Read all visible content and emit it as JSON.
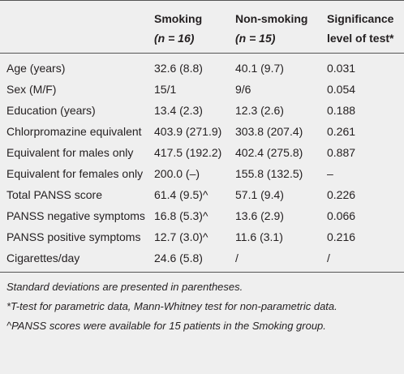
{
  "table": {
    "header": [
      {
        "title": ""
      },
      {
        "title": "Smoking",
        "sub": "(n = 16)"
      },
      {
        "title": "Non-smoking",
        "sub": "(n = 15)"
      },
      {
        "title": "Significance level of test*"
      }
    ],
    "rows": [
      [
        "Age (years)",
        "32.6 (8.8)",
        "40.1 (9.7)",
        "0.031"
      ],
      [
        "Sex (M/F)",
        "15/1",
        "9/6",
        "0.054"
      ],
      [
        "Education (years)",
        "13.4 (2.3)",
        "12.3 (2.6)",
        "0.188"
      ],
      [
        "Chlorpromazine equivalent",
        "403.9 (271.9)",
        "303.8 (207.4)",
        "0.261"
      ],
      [
        "Equivalent for males only",
        "417.5 (192.2)",
        "402.4 (275.8)",
        "0.887"
      ],
      [
        "Equivalent for females only",
        "200.0 (–)",
        "155.8 (132.5)",
        "–"
      ],
      [
        "Total PANSS score",
        "61.4 (9.5)^",
        "57.1 (9.4)",
        "0.226"
      ],
      [
        "PANSS negative symptoms",
        "16.8 (5.3)^",
        "13.6 (2.9)",
        "0.066"
      ],
      [
        "PANSS positive symptoms",
        "12.7 (3.0)^",
        "11.6 (3.1)",
        "0.216"
      ],
      [
        "Cigarettes/day",
        "24.6 (5.8)",
        "/",
        "/"
      ]
    ],
    "footnotes": [
      "Standard deviations are presented in parentheses.",
      "*T-test for parametric data, Mann-Whitney test for non-parametric data.",
      "^PANSS scores were available for 15 patients in the Smoking group."
    ]
  }
}
